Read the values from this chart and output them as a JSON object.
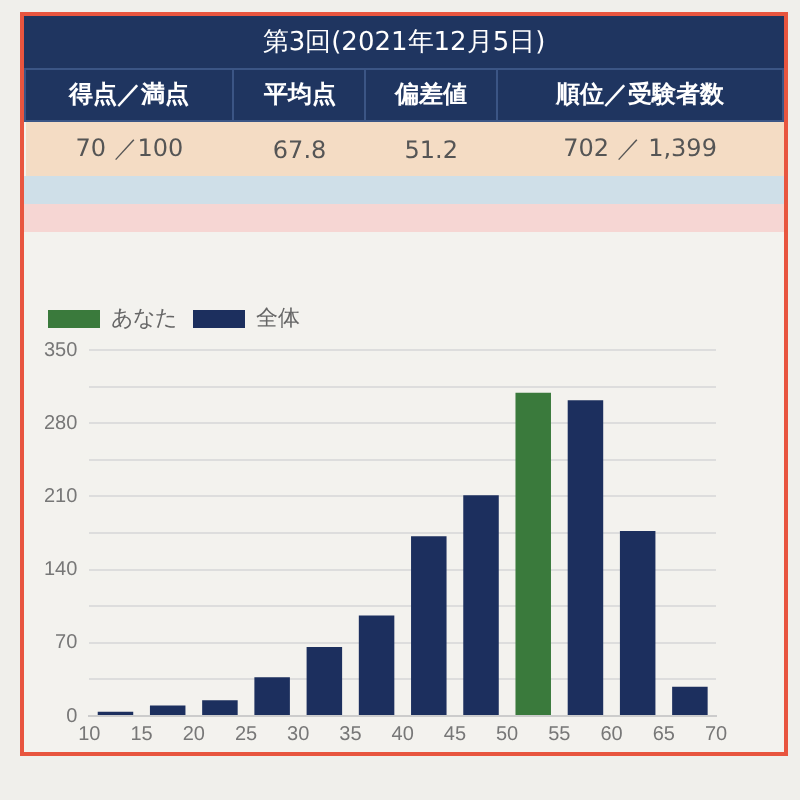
{
  "chart_data": {
    "type": "histogram",
    "title": "第3回(2021年12月5日)",
    "annotations": [
      "得点／満点",
      "70 ／100",
      "平均点",
      "67.8",
      "偏差値",
      "51.2",
      "順位／受験者数",
      "702 ／ 1,399"
    ],
    "bins": [
      10,
      15,
      20,
      25,
      30,
      35,
      40,
      45,
      50,
      55,
      60,
      65,
      70
    ],
    "series": [
      {
        "name": "あなた",
        "color": "#3a7a3c",
        "values": [
          null,
          null,
          null,
          null,
          null,
          null,
          null,
          null,
          309,
          null,
          null,
          null
        ]
      },
      {
        "name": "全体",
        "color": "#1c2f5e",
        "values": [
          4,
          10,
          15,
          37,
          66,
          96,
          172,
          211,
          null,
          302,
          177,
          28
        ]
      }
    ],
    "xlim": [
      10,
      70
    ],
    "xticks": [
      10,
      15,
      20,
      25,
      30,
      35,
      40,
      45,
      50,
      55,
      60,
      65,
      70
    ],
    "ylim": [
      0,
      350
    ],
    "yticks": [
      0,
      {
        "value": 35,
        "label": null
      },
      70,
      {
        "value": 105,
        "label": null
      },
      140,
      {
        "value": 175,
        "label": null
      },
      210,
      {
        "value": 245,
        "label": null
      },
      280,
      {
        "value": 315,
        "label": null
      },
      350
    ],
    "grid": "y",
    "legend": "top left"
  }
}
